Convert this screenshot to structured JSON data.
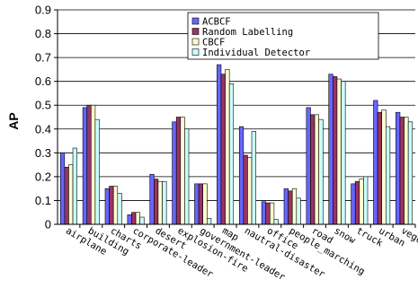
{
  "chart_data": {
    "type": "bar",
    "title": "",
    "xlabel": "",
    "ylabel": "AP",
    "ylim": [
      0,
      0.9
    ],
    "yticks": [
      "0",
      "0.1",
      "0.2",
      "0.3",
      "0.4",
      "0.5",
      "0.6",
      "0.7",
      "0.8",
      "0.9"
    ],
    "grid": "horizontal",
    "legend_position": "top-right",
    "categories": [
      "airplane",
      "building",
      "charts",
      "corporate-leader",
      "desert",
      "explosion-fire",
      "government-leader",
      "map",
      "nautral-disaster",
      "office",
      "people_marching",
      "road",
      "snow",
      "truck",
      "urban",
      "vegetation"
    ],
    "series": [
      {
        "name": "ACBCF",
        "color": "#6666ff",
        "values": [
          0.3,
          0.49,
          0.15,
          0.04,
          0.21,
          0.43,
          0.17,
          0.67,
          0.41,
          0.095,
          0.15,
          0.49,
          0.63,
          0.17,
          0.52,
          0.47
        ]
      },
      {
        "name": "Random Labelling",
        "color": "#993366",
        "values": [
          0.24,
          0.5,
          0.16,
          0.05,
          0.19,
          0.45,
          0.17,
          0.63,
          0.29,
          0.09,
          0.14,
          0.46,
          0.62,
          0.18,
          0.47,
          0.45
        ]
      },
      {
        "name": "CBCF",
        "color": "#ffffcc",
        "values": [
          0.25,
          0.5,
          0.16,
          0.05,
          0.18,
          0.45,
          0.17,
          0.65,
          0.28,
          0.09,
          0.15,
          0.46,
          0.61,
          0.19,
          0.48,
          0.45
        ]
      },
      {
        "name": "Individual Detector",
        "color": "#ccffff",
        "values": [
          0.32,
          0.44,
          0.13,
          0.03,
          0.18,
          0.4,
          0.025,
          0.59,
          0.39,
          0.02,
          0.11,
          0.44,
          0.6,
          0.2,
          0.41,
          0.43
        ]
      }
    ]
  }
}
